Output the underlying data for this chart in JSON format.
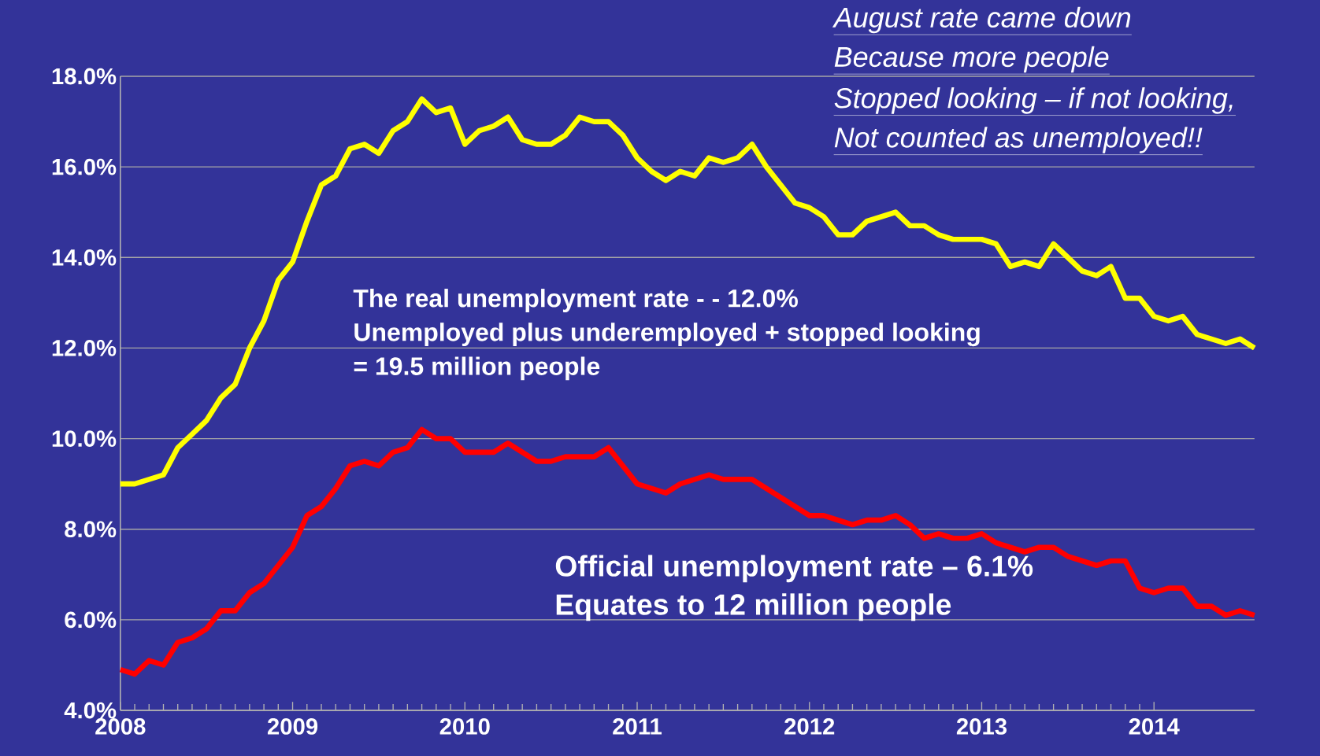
{
  "chart_data": {
    "type": "line",
    "x": [
      "2008-01",
      "2008-02",
      "2008-03",
      "2008-04",
      "2008-05",
      "2008-06",
      "2008-07",
      "2008-08",
      "2008-09",
      "2008-10",
      "2008-11",
      "2008-12",
      "2009-01",
      "2009-02",
      "2009-03",
      "2009-04",
      "2009-05",
      "2009-06",
      "2009-07",
      "2009-08",
      "2009-09",
      "2009-10",
      "2009-11",
      "2009-12",
      "2010-01",
      "2010-02",
      "2010-03",
      "2010-04",
      "2010-05",
      "2010-06",
      "2010-07",
      "2010-08",
      "2010-09",
      "2010-10",
      "2010-11",
      "2010-12",
      "2011-01",
      "2011-02",
      "2011-03",
      "2011-04",
      "2011-05",
      "2011-06",
      "2011-07",
      "2011-08",
      "2011-09",
      "2011-10",
      "2011-11",
      "2011-12",
      "2012-01",
      "2012-02",
      "2012-03",
      "2012-04",
      "2012-05",
      "2012-06",
      "2012-07",
      "2012-08",
      "2012-09",
      "2012-10",
      "2012-11",
      "2012-12",
      "2013-01",
      "2013-02",
      "2013-03",
      "2013-04",
      "2013-05",
      "2013-06",
      "2013-07",
      "2013-08",
      "2013-09",
      "2013-10",
      "2013-11",
      "2013-12",
      "2014-01",
      "2014-02",
      "2014-03",
      "2014-04",
      "2014-05",
      "2014-06",
      "2014-07",
      "2014-08"
    ],
    "series": [
      {
        "color": "#ffff00",
        "values": [
          9.0,
          9.0,
          9.1,
          9.2,
          9.8,
          10.1,
          10.4,
          10.9,
          11.2,
          12.0,
          12.6,
          13.5,
          13.9,
          14.8,
          15.6,
          15.8,
          16.4,
          16.5,
          16.3,
          16.8,
          17.0,
          17.5,
          17.2,
          17.3,
          16.5,
          16.8,
          16.9,
          17.1,
          16.6,
          16.5,
          16.5,
          16.7,
          17.1,
          17.0,
          17.0,
          16.7,
          16.2,
          15.9,
          15.7,
          15.9,
          15.8,
          16.2,
          16.1,
          16.2,
          16.5,
          16.0,
          15.6,
          15.2,
          15.1,
          14.9,
          14.5,
          14.5,
          14.8,
          14.9,
          15.0,
          14.7,
          14.7,
          14.5,
          14.4,
          14.4,
          14.4,
          14.3,
          13.8,
          13.9,
          13.8,
          14.3,
          14.0,
          13.7,
          13.6,
          13.8,
          13.1,
          13.1,
          12.7,
          12.6,
          12.7,
          12.3,
          12.2,
          12.1,
          12.2,
          12.0
        ]
      },
      {
        "color": "#ff0000",
        "values": [
          4.9,
          4.8,
          5.1,
          5.0,
          5.5,
          5.6,
          5.8,
          6.2,
          6.2,
          6.6,
          6.8,
          7.2,
          7.6,
          8.3,
          8.5,
          8.9,
          9.4,
          9.5,
          9.4,
          9.7,
          9.8,
          10.2,
          10.0,
          10.0,
          9.7,
          9.7,
          9.7,
          9.9,
          9.7,
          9.5,
          9.5,
          9.6,
          9.6,
          9.6,
          9.8,
          9.4,
          9.0,
          8.9,
          8.8,
          9.0,
          9.1,
          9.2,
          9.1,
          9.1,
          9.1,
          8.9,
          8.7,
          8.5,
          8.3,
          8.3,
          8.2,
          8.1,
          8.2,
          8.2,
          8.3,
          8.1,
          7.8,
          7.9,
          7.8,
          7.8,
          7.9,
          7.7,
          7.6,
          7.5,
          7.6,
          7.6,
          7.4,
          7.3,
          7.2,
          7.3,
          7.3,
          6.7,
          6.6,
          6.7,
          6.7,
          6.3,
          6.3,
          6.1,
          6.2,
          6.1
        ]
      }
    ],
    "xlim": [
      "2008-01",
      "2014-08"
    ],
    "xticks": [
      "2008",
      "2009",
      "2010",
      "2011",
      "2012",
      "2013",
      "2014"
    ],
    "ylim": [
      4,
      18
    ],
    "yticks": [
      {
        "value": 4,
        "label": "4.0%"
      },
      {
        "value": 6,
        "label": "6.0%"
      },
      {
        "value": 8,
        "label": "8.0%"
      },
      {
        "value": 10,
        "label": "10.0%"
      },
      {
        "value": 12,
        "label": "12.0%"
      },
      {
        "value": 14,
        "label": "14.0%"
      },
      {
        "value": 16,
        "label": "16.0%"
      },
      {
        "value": 18,
        "label": "18.0%"
      }
    ],
    "grid": "y",
    "marker": "none",
    "line_style": "solid",
    "annotations": [
      "August rate came down",
      "Because more people",
      "Stopped looking – if not looking,",
      "Not counted as unemployed!!",
      "The real unemployment rate - -  12.0%",
      "Unemployed plus underemployed  + stopped looking",
      "= 19.5  million people",
      "Official unemployment rate – 6.1%",
      "Equates to 12 million people"
    ]
  }
}
